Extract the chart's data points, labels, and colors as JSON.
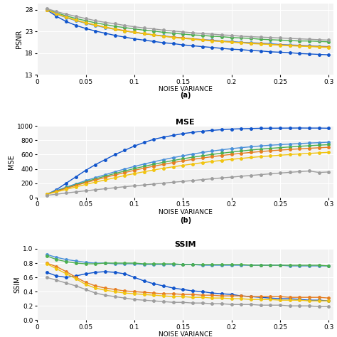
{
  "noise_variance": [
    0.01,
    0.02,
    0.03,
    0.04,
    0.05,
    0.06,
    0.07,
    0.08,
    0.09,
    0.1,
    0.11,
    0.12,
    0.13,
    0.14,
    0.15,
    0.16,
    0.17,
    0.18,
    0.19,
    0.2,
    0.21,
    0.22,
    0.23,
    0.24,
    0.25,
    0.26,
    0.27,
    0.28,
    0.29,
    0.3
  ],
  "colors": [
    "#1155cc",
    "#4a90d9",
    "#4caf50",
    "#e67e22",
    "#f1c40f",
    "#9e9e9e"
  ],
  "psnr_data": [
    [
      28.0,
      26.5,
      25.3,
      24.4,
      23.7,
      23.1,
      22.6,
      22.1,
      21.7,
      21.3,
      21.0,
      20.7,
      20.4,
      20.2,
      19.9,
      19.7,
      19.5,
      19.3,
      19.1,
      18.9,
      18.8,
      18.6,
      18.5,
      18.3,
      18.2,
      18.1,
      17.9,
      17.8,
      17.7,
      17.6
    ],
    [
      28.0,
      27.0,
      26.2,
      25.5,
      24.9,
      24.4,
      23.9,
      23.5,
      23.1,
      22.8,
      22.5,
      22.2,
      22.0,
      21.7,
      21.5,
      21.3,
      21.1,
      21.0,
      20.8,
      20.7,
      20.5,
      20.4,
      20.3,
      20.2,
      20.0,
      19.9,
      19.8,
      19.7,
      19.6,
      19.5
    ],
    [
      28.1,
      27.3,
      26.6,
      26.0,
      25.5,
      25.0,
      24.6,
      24.2,
      23.9,
      23.6,
      23.3,
      23.1,
      22.8,
      22.6,
      22.4,
      22.2,
      22.1,
      21.9,
      21.8,
      21.6,
      21.5,
      21.4,
      21.2,
      21.1,
      21.0,
      20.9,
      20.8,
      20.8,
      20.7,
      20.6
    ],
    [
      28.0,
      27.1,
      26.3,
      25.6,
      25.0,
      24.5,
      24.0,
      23.6,
      23.2,
      22.8,
      22.5,
      22.2,
      21.9,
      21.7,
      21.5,
      21.3,
      21.1,
      20.9,
      20.7,
      20.6,
      20.4,
      20.3,
      20.2,
      20.0,
      19.9,
      19.8,
      19.7,
      19.6,
      19.5,
      19.4
    ],
    [
      28.0,
      27.1,
      26.3,
      25.6,
      25.0,
      24.5,
      24.0,
      23.5,
      23.1,
      22.8,
      22.5,
      22.2,
      21.9,
      21.6,
      21.4,
      21.2,
      21.0,
      20.8,
      20.7,
      20.5,
      20.4,
      20.2,
      20.1,
      20.0,
      19.8,
      19.7,
      19.6,
      19.5,
      19.4,
      19.3
    ],
    [
      28.3,
      27.6,
      27.0,
      26.5,
      26.0,
      25.5,
      25.1,
      24.8,
      24.4,
      24.1,
      23.8,
      23.6,
      23.3,
      23.1,
      22.9,
      22.7,
      22.5,
      22.4,
      22.2,
      22.1,
      21.9,
      21.8,
      21.7,
      21.6,
      21.5,
      21.4,
      21.3,
      21.2,
      21.1,
      21.0
    ]
  ],
  "mse_data": [
    [
      40,
      110,
      200,
      290,
      380,
      460,
      530,
      600,
      660,
      720,
      770,
      815,
      845,
      870,
      895,
      912,
      928,
      940,
      950,
      958,
      963,
      966,
      969,
      970,
      971,
      972,
      973,
      972,
      972,
      970
    ],
    [
      50,
      95,
      145,
      190,
      235,
      278,
      318,
      360,
      398,
      434,
      468,
      500,
      530,
      558,
      584,
      608,
      630,
      650,
      668,
      684,
      698,
      710,
      722,
      732,
      740,
      748,
      755,
      762,
      768,
      774
    ],
    [
      48,
      90,
      135,
      178,
      220,
      260,
      298,
      335,
      370,
      404,
      435,
      465,
      492,
      518,
      542,
      564,
      584,
      603,
      620,
      636,
      651,
      665,
      677,
      688,
      698,
      708,
      717,
      725,
      733,
      740
    ],
    [
      46,
      85,
      128,
      168,
      207,
      244,
      280,
      315,
      348,
      380,
      410,
      438,
      464,
      489,
      512,
      533,
      553,
      571,
      588,
      604,
      618,
      631,
      643,
      654,
      664,
      673,
      681,
      689,
      696,
      703
    ],
    [
      44,
      78,
      112,
      148,
      182,
      214,
      246,
      276,
      306,
      334,
      360,
      385,
      408,
      430,
      450,
      469,
      487,
      504,
      520,
      534,
      547,
      560,
      572,
      582,
      592,
      601,
      609,
      617,
      625,
      632
    ],
    [
      30,
      45,
      62,
      78,
      93,
      108,
      122,
      136,
      150,
      163,
      175,
      188,
      200,
      213,
      225,
      237,
      250,
      262,
      274,
      285,
      297,
      308,
      320,
      331,
      342,
      352,
      362,
      371,
      350,
      357
    ]
  ],
  "ssim_data": [
    [
      0.67,
      0.62,
      0.6,
      0.62,
      0.65,
      0.67,
      0.68,
      0.67,
      0.65,
      0.6,
      0.55,
      0.51,
      0.48,
      0.45,
      0.43,
      0.41,
      0.4,
      0.38,
      0.37,
      0.36,
      0.34,
      0.33,
      0.32,
      0.31,
      0.3,
      0.3,
      0.29,
      0.28,
      0.28,
      0.27
    ],
    [
      0.92,
      0.88,
      0.85,
      0.83,
      0.81,
      0.8,
      0.8,
      0.79,
      0.79,
      0.79,
      0.78,
      0.78,
      0.78,
      0.78,
      0.78,
      0.78,
      0.77,
      0.77,
      0.77,
      0.77,
      0.77,
      0.77,
      0.77,
      0.77,
      0.77,
      0.76,
      0.76,
      0.76,
      0.76,
      0.76
    ],
    [
      0.9,
      0.85,
      0.82,
      0.8,
      0.79,
      0.79,
      0.8,
      0.8,
      0.8,
      0.8,
      0.79,
      0.79,
      0.79,
      0.79,
      0.78,
      0.78,
      0.78,
      0.78,
      0.78,
      0.78,
      0.78,
      0.77,
      0.77,
      0.77,
      0.77,
      0.77,
      0.77,
      0.77,
      0.77,
      0.76
    ],
    [
      0.8,
      0.75,
      0.68,
      0.6,
      0.53,
      0.48,
      0.45,
      0.43,
      0.41,
      0.4,
      0.39,
      0.38,
      0.37,
      0.37,
      0.36,
      0.36,
      0.35,
      0.35,
      0.34,
      0.34,
      0.34,
      0.33,
      0.33,
      0.33,
      0.33,
      0.32,
      0.32,
      0.32,
      0.32,
      0.31
    ],
    [
      0.79,
      0.72,
      0.65,
      0.58,
      0.5,
      0.45,
      0.42,
      0.4,
      0.38,
      0.37,
      0.36,
      0.35,
      0.34,
      0.33,
      0.33,
      0.32,
      0.32,
      0.31,
      0.31,
      0.3,
      0.3,
      0.29,
      0.29,
      0.29,
      0.28,
      0.28,
      0.28,
      0.27,
      0.27,
      0.27
    ],
    [
      0.6,
      0.56,
      0.52,
      0.48,
      0.43,
      0.38,
      0.35,
      0.33,
      0.31,
      0.29,
      0.28,
      0.27,
      0.26,
      0.25,
      0.25,
      0.24,
      0.24,
      0.23,
      0.23,
      0.22,
      0.22,
      0.22,
      0.21,
      0.21,
      0.21,
      0.2,
      0.2,
      0.2,
      0.19,
      0.19
    ]
  ],
  "psnr_ylim": [
    13,
    29.5
  ],
  "psnr_yticks": [
    13,
    18,
    23,
    28
  ],
  "mse_ylim": [
    0,
    1000
  ],
  "mse_yticks": [
    0,
    200,
    400,
    600,
    800,
    1000
  ],
  "ssim_ylim": [
    0,
    1.0
  ],
  "ssim_yticks": [
    0,
    0.2,
    0.4,
    0.6,
    0.8,
    1.0
  ],
  "xlim": [
    0,
    0.305
  ],
  "xticks": [
    0,
    0.05,
    0.1,
    0.15,
    0.2,
    0.25,
    0.3
  ],
  "xlabel": "NOISE VARIANCE",
  "psnr_ylabel": "PSNR",
  "mse_ylabel": "MSE",
  "ssim_ylabel": "SSIM",
  "label_a": "(a)",
  "label_b": "(b)",
  "title_mse": "MSE",
  "title_ssim": "SSIM",
  "marker": "o",
  "markersize": 2.5,
  "linewidth": 1.0
}
